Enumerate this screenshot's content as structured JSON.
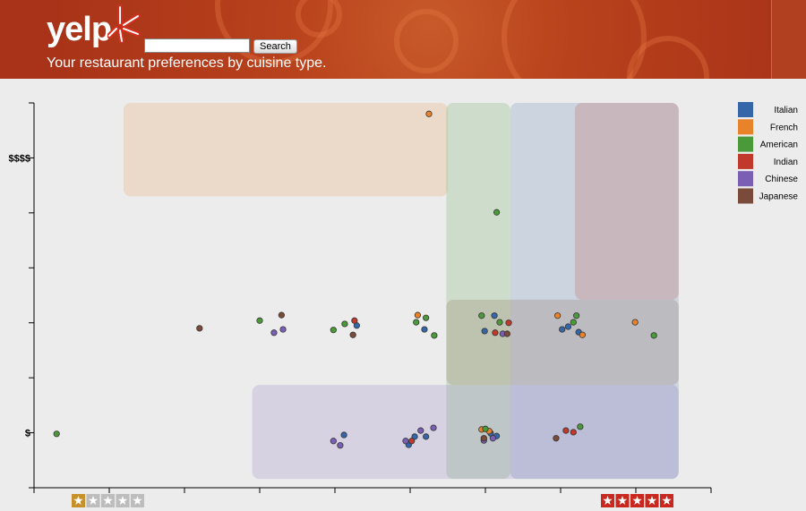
{
  "header": {
    "logo": "yelp",
    "search_button": "Search",
    "subtitle": "Your restaurant preferences by cuisine type."
  },
  "chart_data": {
    "type": "scatter",
    "xlim": [
      0,
      9
    ],
    "ylim": [
      0,
      7
    ],
    "xtick_marks": [
      0,
      1,
      2,
      3,
      4,
      5,
      6,
      7,
      8,
      9
    ],
    "yticks": [
      {
        "value": 1,
        "label": "$"
      },
      {
        "value": 6,
        "label": "$$$$"
      }
    ],
    "ytick_marks": [
      0,
      2,
      3,
      4,
      5,
      7
    ],
    "series": [
      {
        "name": "Italian",
        "color": "#3567a8",
        "x": [
          4.12,
          4.98,
          5.06,
          5.21,
          5.99,
          6.12,
          6.07,
          6.15,
          7.02,
          7.1,
          7.24,
          4.29,
          5.19
        ],
        "values": [
          0.96,
          0.78,
          0.93,
          0.93,
          2.85,
          3.13,
          0.99,
          0.94,
          2.88,
          2.93,
          2.83,
          2.95,
          2.88
        ],
        "region": {
          "x": [
            6.33,
            8.57
          ],
          "y": [
            0.16,
            7.0
          ]
        }
      },
      {
        "name": "French",
        "color": "#e8832a",
        "x": [
          5.25,
          5.1,
          6.96,
          7.99,
          7.29,
          6.05,
          5.95
        ],
        "values": [
          6.8,
          3.14,
          3.13,
          3.01,
          2.78,
          1.03,
          1.06
        ],
        "region": {
          "x": [
            1.19,
            5.5
          ],
          "y": [
            5.3,
            7.0
          ]
        }
      },
      {
        "name": "American",
        "color": "#4a9a3a",
        "x": [
          0.3,
          3.0,
          4.13,
          3.98,
          5.21,
          5.08,
          5.32,
          5.95,
          6.15,
          6.19,
          7.21,
          7.17,
          8.24,
          7.26,
          6.0
        ],
        "values": [
          0.98,
          3.04,
          2.98,
          2.87,
          3.09,
          3.01,
          2.77,
          3.13,
          5.01,
          3.01,
          3.13,
          3.01,
          2.77,
          1.11,
          1.07
        ],
        "region": {
          "x": [
            5.48,
            6.33
          ],
          "y": [
            0.16,
            7.0
          ]
        }
      },
      {
        "name": "Indian",
        "color": "#c0392b",
        "x": [
          4.26,
          5.02,
          6.13,
          6.31,
          7.07,
          7.17
        ],
        "values": [
          3.04,
          0.85,
          2.82,
          3.0,
          1.04,
          1.01
        ],
        "region": {
          "x": [
            7.19,
            8.57
          ],
          "y": [
            3.42,
            7.0
          ]
        }
      },
      {
        "name": "Chinese",
        "color": "#7b5fb5",
        "x": [
          3.19,
          3.31,
          3.98,
          4.07,
          4.94,
          5.14,
          5.31,
          5.98,
          6.1,
          6.23
        ],
        "values": [
          2.82,
          2.88,
          0.85,
          0.77,
          0.85,
          1.04,
          1.09,
          0.86,
          0.9,
          2.8
        ],
        "region": {
          "x": [
            2.9,
            8.57
          ],
          "y": [
            0.16,
            1.87
          ]
        }
      },
      {
        "name": "Japanese",
        "color": "#7a4b3a",
        "x": [
          2.2,
          3.29,
          4.24,
          6.29,
          6.94,
          5.98
        ],
        "values": [
          2.9,
          3.14,
          2.78,
          2.8,
          0.9,
          0.9
        ],
        "region": {
          "x": [
            5.48,
            8.57
          ],
          "y": [
            1.87,
            3.42
          ]
        }
      }
    ]
  }
}
